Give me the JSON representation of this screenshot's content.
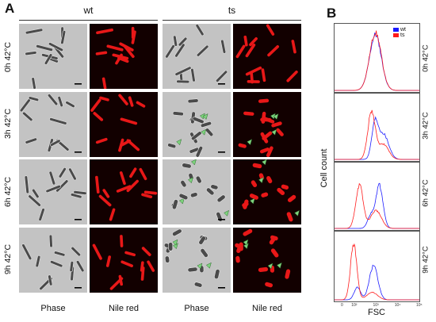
{
  "panel_a": {
    "letter": "A",
    "groups": [
      "wt",
      "ts"
    ],
    "columns": [
      "Phase",
      "Nile red",
      "Phase",
      "Nile red"
    ],
    "rows": [
      "0h  42°C",
      "3h  42°C",
      "6h  42°C",
      "9h  42°C"
    ]
  },
  "panel_b": {
    "letter": "B",
    "ylabel": "Cell count",
    "xlabel": "FSC",
    "xticks": [
      "0",
      "10²",
      "10³",
      "10⁴",
      "10⁵"
    ],
    "rows": [
      "0h  42°C",
      "3h  42°C",
      "6h  42°C",
      "9h  42°C"
    ]
  },
  "chart_data": {
    "type": "line",
    "xlabel": "FSC",
    "ylabel": "Cell count",
    "xscale": "log",
    "legend": {
      "placement": "top-right"
    },
    "series_colors": {
      "wt": "#1a1aff",
      "ts": "#ff1a1a"
    },
    "panels": [
      {
        "label": "0h  42°C",
        "series": [
          {
            "name": "wt",
            "peaks": [
              {
                "x": 850,
                "height": 0.92,
                "width": 0.55
              }
            ]
          },
          {
            "name": "ts",
            "peaks": [
              {
                "x": 850,
                "height": 0.95,
                "width": 0.55
              }
            ]
          }
        ]
      },
      {
        "label": "3h  42°C",
        "series": [
          {
            "name": "wt",
            "peaks": [
              {
                "x": 800,
                "height": 0.55,
                "width": 0.3
              },
              {
                "x": 2000,
                "height": 0.42,
                "width": 0.5
              }
            ]
          },
          {
            "name": "ts",
            "peaks": [
              {
                "x": 550,
                "height": 0.78,
                "width": 0.35
              },
              {
                "x": 2000,
                "height": 0.25,
                "width": 0.5
              }
            ]
          }
        ]
      },
      {
        "label": "6h  42°C",
        "series": [
          {
            "name": "wt",
            "peaks": [
              {
                "x": 1300,
                "height": 0.72,
                "width": 0.35
              },
              {
                "x": 500,
                "height": 0.2,
                "width": 0.3
              }
            ]
          },
          {
            "name": "ts",
            "peaks": [
              {
                "x": 150,
                "height": 0.72,
                "width": 0.35
              },
              {
                "x": 900,
                "height": 0.3,
                "width": 0.5
              }
            ]
          }
        ]
      },
      {
        "label": "9h  42°C",
        "series": [
          {
            "name": "wt",
            "peaks": [
              {
                "x": 700,
                "height": 0.55,
                "width": 0.4
              },
              {
                "x": 120,
                "height": 0.2,
                "width": 0.3
              }
            ]
          },
          {
            "name": "ts",
            "peaks": [
              {
                "x": 80,
                "height": 0.9,
                "width": 0.3
              },
              {
                "x": 600,
                "height": 0.12,
                "width": 0.5
              }
            ]
          }
        ]
      }
    ]
  }
}
